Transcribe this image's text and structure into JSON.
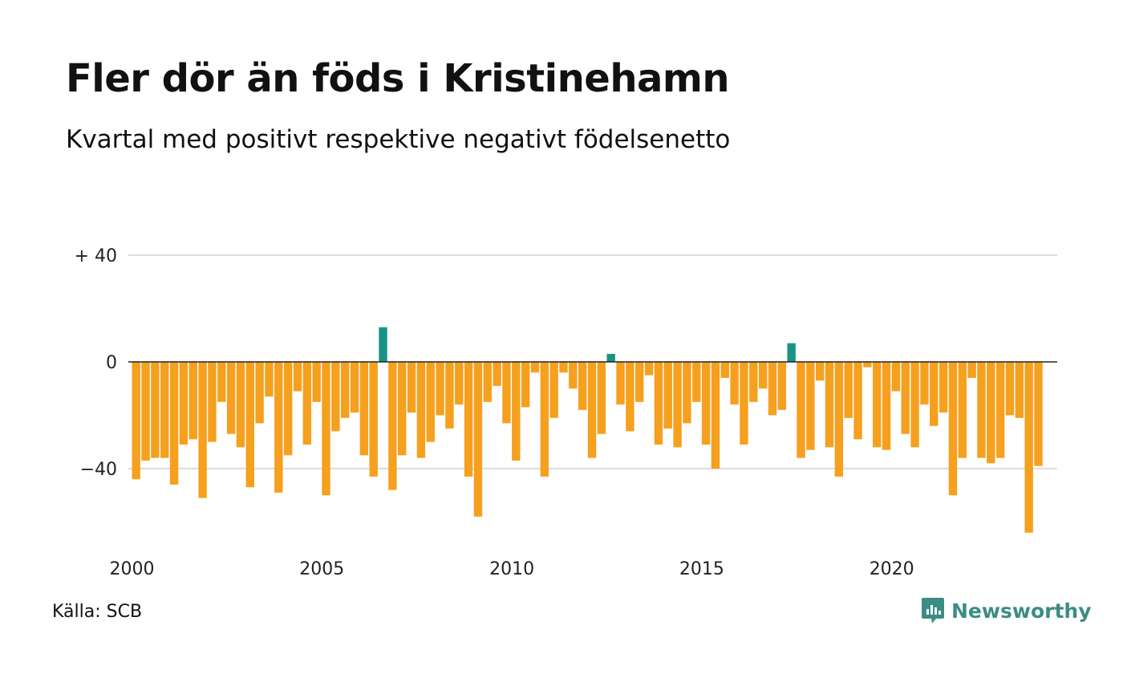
{
  "header": {
    "title": "Fler dör än föds i Kristinehamn",
    "subtitle": "Kvartal med positivt respektive negativt födelsenetto"
  },
  "footer": {
    "source": "Källa: SCB",
    "brand": "Newsworthy",
    "brand_icon": "newsworthy-logo-icon"
  },
  "colors": {
    "positive": "#1a9387",
    "negative": "#f5a01e",
    "brand": "#3d8c84",
    "grid": "#dcdcdc",
    "zero_line": "#222222"
  },
  "chart_data": {
    "type": "bar",
    "title": "Fler dör än föds i Kristinehamn",
    "subtitle": "Kvartal med positivt respektive negativt födelsenetto",
    "xlabel": "",
    "ylabel": "",
    "x_start": "2000 Q1",
    "x_ticks": [
      "2000",
      "2005",
      "2010",
      "2015",
      "2020"
    ],
    "y_ticks": [
      {
        "value": 40,
        "label": "+ 40"
      },
      {
        "value": 0,
        "label": "0"
      },
      {
        "value": -40,
        "label": "−40"
      }
    ],
    "ylim": [
      -70,
      40
    ],
    "grid": true,
    "values": [
      -44,
      -37,
      -36,
      -36,
      -46,
      -31,
      -29,
      -51,
      -30,
      -15,
      -27,
      -32,
      -47,
      -23,
      -13,
      -49,
      -35,
      -11,
      -31,
      -15,
      -50,
      -26,
      -21,
      -19,
      -35,
      -43,
      13,
      -48,
      -35,
      -19,
      -36,
      -30,
      -20,
      -25,
      -16,
      -43,
      -58,
      -15,
      -9,
      -23,
      -37,
      -17,
      -4,
      -43,
      -21,
      -4,
      -10,
      -18,
      -36,
      -27,
      3,
      -16,
      -26,
      -15,
      -5,
      -31,
      -25,
      -32,
      -23,
      -15,
      -31,
      -40,
      -6,
      -16,
      -31,
      -15,
      -10,
      -20,
      -18,
      7,
      -36,
      -33,
      -7,
      -32,
      -43,
      -21,
      -29,
      -2,
      -32,
      -33,
      -11,
      -27,
      -32,
      -16,
      -24,
      -19,
      -50,
      -36,
      -6,
      -36,
      -38,
      -36,
      -20,
      -21,
      -64,
      -39
    ]
  }
}
